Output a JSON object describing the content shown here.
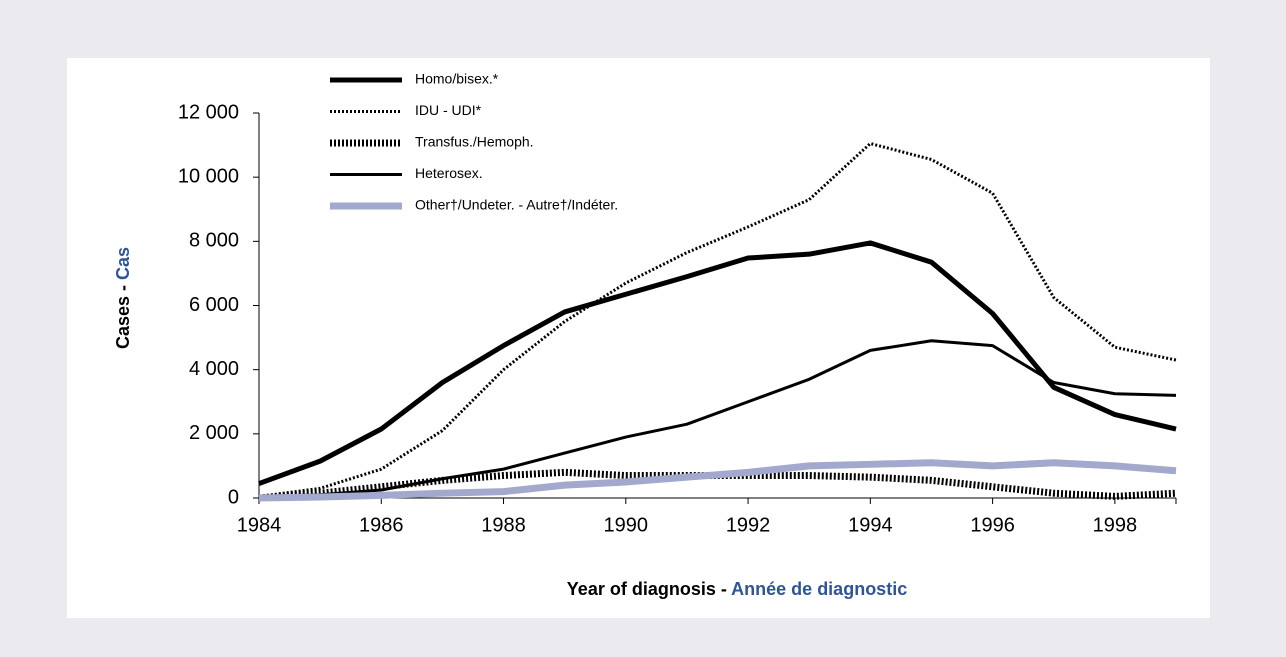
{
  "chart_data": {
    "type": "line",
    "xlabel": {
      "en": "Year of diagnosis - ",
      "fr": "Année de diagnostic"
    },
    "ylabel": {
      "en": "Cases - ",
      "fr": "Cas"
    },
    "x": [
      1984,
      1985,
      1986,
      1987,
      1988,
      1989,
      1990,
      1991,
      1992,
      1993,
      1994,
      1995,
      1996,
      1997,
      1998,
      1999
    ],
    "xlim": [
      1984,
      1999
    ],
    "xticks": [
      1984,
      1986,
      1988,
      1990,
      1992,
      1994,
      1996,
      1998
    ],
    "ylim": [
      0,
      12000
    ],
    "yticks": [
      0,
      {
        "value": 2000,
        "label": "2 000"
      },
      {
        "value": 4000,
        "label": "4 000"
      },
      {
        "value": 6000,
        "label": "6 000"
      },
      {
        "value": 8000,
        "label": "8 000"
      },
      {
        "value": 10000,
        "label": "10 000"
      },
      {
        "value": 12000,
        "label": "12 000"
      }
    ],
    "grid": false,
    "legend": "upper left",
    "series": [
      {
        "name": "Homo/bisex.*",
        "color": "#000000",
        "style": "solid",
        "values": [
          450,
          1150,
          2150,
          3600,
          4750,
          5800,
          6350,
          6900,
          7480,
          7600,
          7950,
          7350,
          5750,
          3450,
          2600,
          2150
        ]
      },
      {
        "name": "IDU  -  UDI*",
        "color": "#000000",
        "style": "dotted",
        "values": [
          50,
          300,
          900,
          2100,
          4000,
          5500,
          6700,
          7650,
          8450,
          9300,
          11050,
          10550,
          9500,
          6250,
          4700,
          4300
        ]
      },
      {
        "name": "Transfus./Hemoph.",
        "color": "#000000",
        "style": "dotted",
        "values": [
          0,
          150,
          350,
          550,
          700,
          800,
          700,
          700,
          700,
          700,
          650,
          550,
          350,
          150,
          50,
          150
        ]
      },
      {
        "name": "Heterosex.",
        "color": "#000000",
        "style": "solid",
        "values": [
          50,
          100,
          250,
          600,
          900,
          1400,
          1900,
          2300,
          3000,
          3700,
          4600,
          4900,
          4750,
          3600,
          3250,
          3200
        ]
      },
      {
        "name": "Other†/Undeter.  -  Autre†/Indéter.",
        "color": "#a2a9cd",
        "style": "solid",
        "values": [
          0,
          30,
          80,
          150,
          200,
          400,
          500,
          650,
          800,
          1000,
          1050,
          1100,
          1000,
          1100,
          1000,
          850
        ]
      }
    ]
  }
}
